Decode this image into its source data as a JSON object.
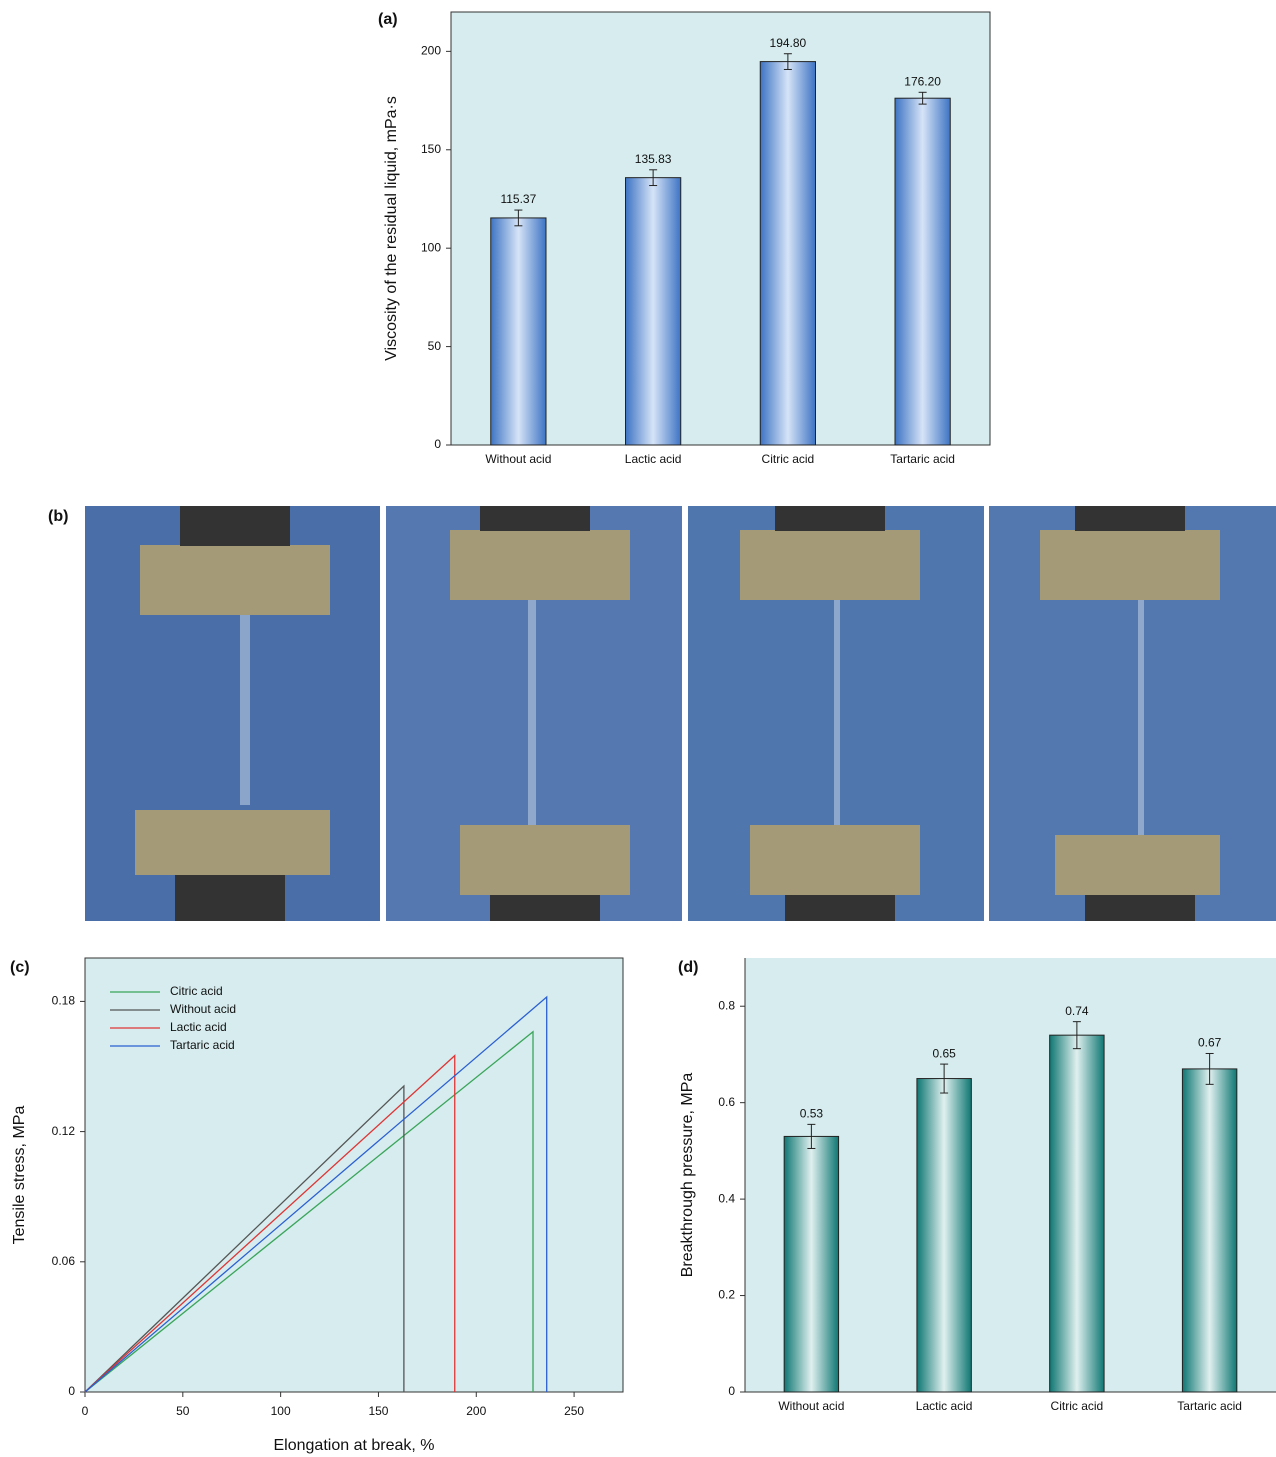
{
  "chart_data": [
    {
      "type": "bar",
      "label": "(a)",
      "ylabel": "Viscosity of the residual liquid, mPa·s",
      "categories": [
        "Without acid",
        "Lactic acid",
        "Citric acid",
        "Tartaric acid"
      ],
      "values": [
        115.37,
        135.83,
        194.8,
        176.2
      ],
      "value_labels": [
        "115.37",
        "135.83",
        "194.80",
        "176.20"
      ],
      "errors": [
        4,
        4,
        4,
        3
      ],
      "color": "#3d74c4",
      "ylim": [
        0,
        220
      ],
      "yticks": [
        0,
        50,
        100,
        150,
        200
      ]
    },
    {
      "type": "line",
      "label": "(c)",
      "xlabel": "Elongation at break, %",
      "ylabel": "Tensile stress, MPa",
      "series": [
        {
          "name": "Citric acid",
          "color": "#3aa55a",
          "x": [
            0,
            229,
            229
          ],
          "values": [
            0,
            0.166,
            0
          ]
        },
        {
          "name": "Without acid",
          "color": "#555555",
          "x": [
            0,
            163,
            163
          ],
          "values": [
            0,
            0.141,
            0
          ]
        },
        {
          "name": "Lactic acid",
          "color": "#e03434",
          "x": [
            0,
            189,
            189
          ],
          "values": [
            0,
            0.155,
            0
          ]
        },
        {
          "name": "Tartaric acid",
          "color": "#2b5fd2",
          "x": [
            0,
            236,
            236
          ],
          "values": [
            0,
            0.182,
            0
          ]
        }
      ],
      "xlim": [
        0,
        275
      ],
      "xticks": [
        0,
        50,
        100,
        150,
        200,
        250
      ],
      "ylim": [
        0,
        0.2
      ],
      "yticks": [
        0,
        0.06,
        0.12,
        0.18
      ],
      "legend": "upper-left"
    },
    {
      "type": "bar",
      "label": "(d)",
      "ylabel": "Breakthrough pressure, MPa",
      "categories": [
        "Without acid",
        "Lactic acid",
        "Citric acid",
        "Tartaric acid"
      ],
      "values": [
        0.53,
        0.65,
        0.74,
        0.67
      ],
      "errors": [
        0.025,
        0.03,
        0.028,
        0.032
      ],
      "color": "#0f7773",
      "ylim": [
        0,
        0.9
      ],
      "yticks": [
        0,
        0.2,
        0.4,
        0.6,
        0.8
      ]
    }
  ],
  "photos": {
    "label": "(b)"
  }
}
